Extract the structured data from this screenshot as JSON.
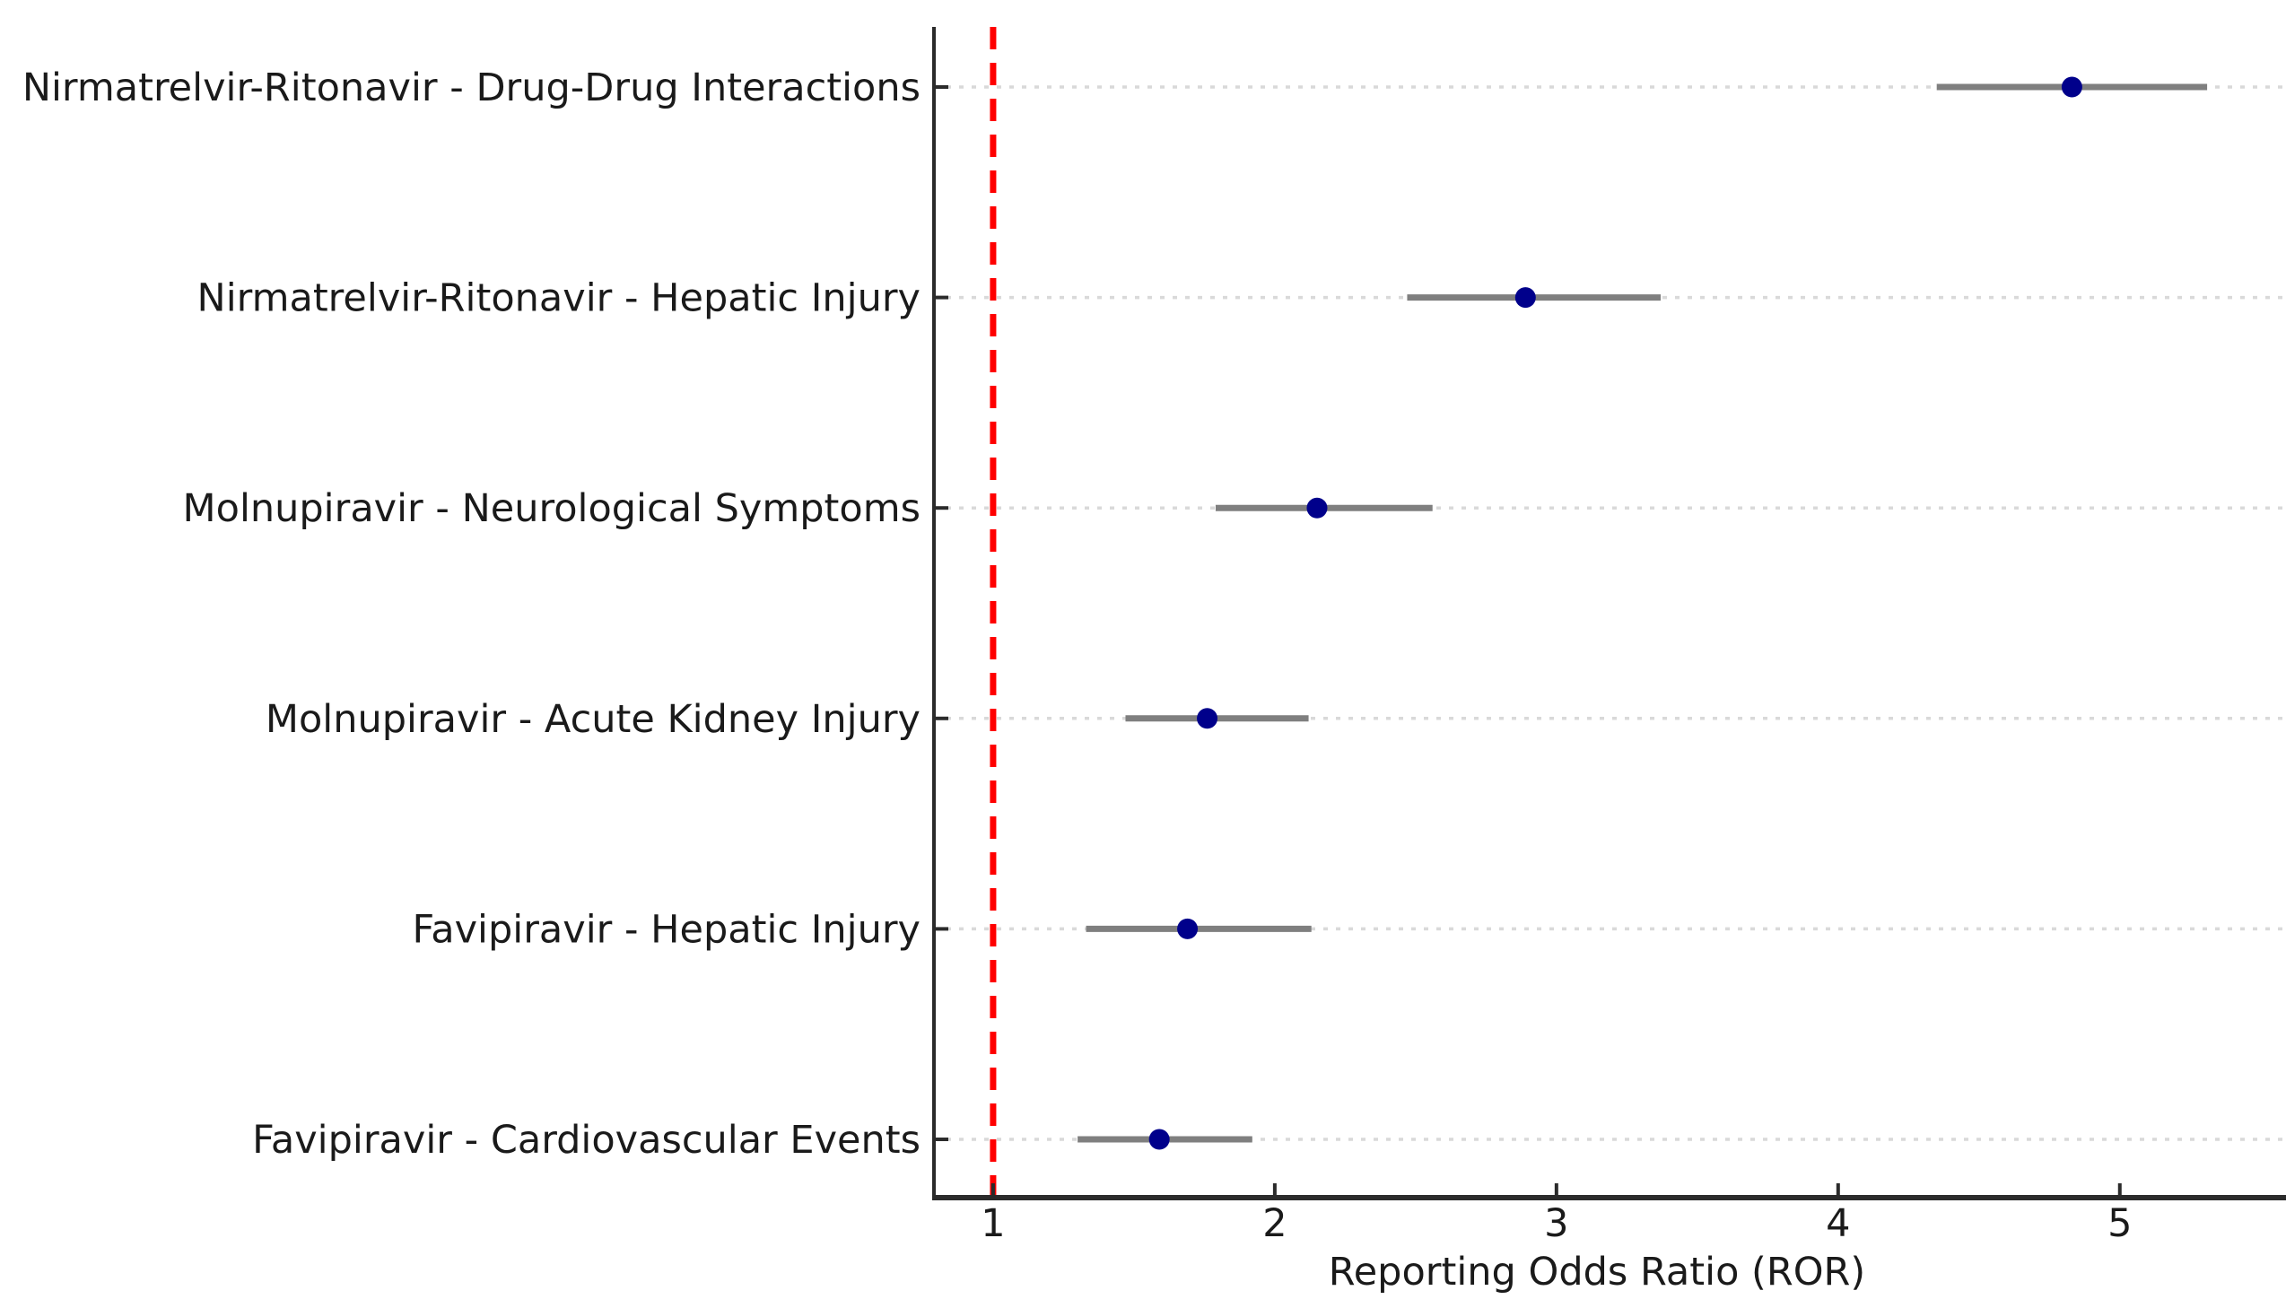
{
  "chart_data": {
    "type": "scatter",
    "subtype": "forest-plot-errorbar",
    "title": "",
    "xlabel": "Reporting Odds Ratio (ROR)",
    "ylabel": "",
    "categories": [
      "Nirmatrelvir-Ritonavir - Drug-Drug Interactions",
      "Nirmatrelvir-Ritonavir - Hepatic Injury",
      "Molnupiravir - Neurological Symptoms",
      "Molnupiravir - Acute Kidney Injury",
      "Favipiravir - Hepatic Injury",
      "Favipiravir - Cardiovascular Events"
    ],
    "series": [
      {
        "name": "ROR point estimate",
        "values": [
          4.83,
          2.89,
          2.15,
          1.76,
          1.69,
          1.59
        ],
        "ci_low": [
          4.35,
          2.47,
          1.79,
          1.47,
          1.33,
          1.3
        ],
        "ci_high": [
          5.31,
          3.37,
          2.56,
          2.12,
          2.13,
          1.92
        ]
      }
    ],
    "x_ticks": [
      "1",
      "2",
      "3",
      "4",
      "5"
    ],
    "x_tick_values": [
      1,
      2,
      3,
      4,
      5
    ],
    "xlim": [
      0.79,
      5.59
    ],
    "reference_line": {
      "x": 1,
      "style": "dashed"
    },
    "grid": "horizontal-dashed",
    "legend": "none",
    "colors": {
      "marker": "#00008b",
      "error_bar": "#7f7f7f",
      "reference": "#ff0000",
      "grid": "#d9d9d9",
      "axis": "#2b2b2b",
      "text": "#1a1a1a"
    }
  }
}
